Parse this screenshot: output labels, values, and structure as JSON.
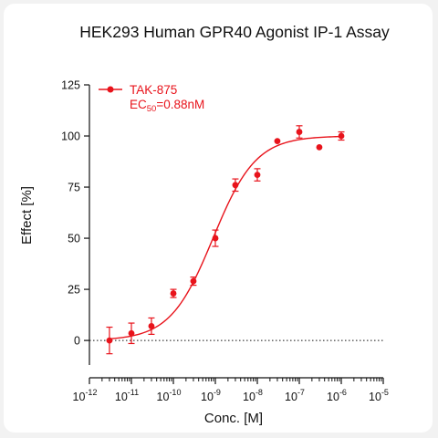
{
  "chart_data": {
    "type": "scatter",
    "title": "HEK293 Human GPR40 Agonist IP-1 Assay",
    "xlabel": "Conc. [M]",
    "ylabel": "Effect  [%]",
    "x_scale": "log",
    "xlim": [
      1e-12,
      1e-05
    ],
    "ylim": [
      -12,
      125
    ],
    "x_ticks": [
      {
        "base": "10",
        "exp": "-12"
      },
      {
        "base": "10",
        "exp": "-11"
      },
      {
        "base": "10",
        "exp": "-10"
      },
      {
        "base": "10",
        "exp": "-9"
      },
      {
        "base": "10",
        "exp": "-8"
      },
      {
        "base": "10",
        "exp": "-7"
      },
      {
        "base": "10",
        "exp": "-6"
      },
      {
        "base": "10",
        "exp": "-5"
      }
    ],
    "y_ticks": [
      "0",
      "25",
      "50",
      "75",
      "100",
      "125"
    ],
    "color": "#e8131b",
    "zero_line": true,
    "legend": {
      "position": "top-left",
      "name": "TAK-875",
      "ec_prefix": "EC",
      "ec_sub": "50",
      "ec_value": "=0.88nM"
    },
    "series": [
      {
        "name": "TAK-875",
        "points": [
          {
            "x": 3e-12,
            "y": 0,
            "err": 6.5
          },
          {
            "x": 1e-11,
            "y": 3.5,
            "err": 5
          },
          {
            "x": 3e-11,
            "y": 7,
            "err": 4
          },
          {
            "x": 1e-10,
            "y": 23,
            "err": 2
          },
          {
            "x": 3e-10,
            "y": 29,
            "err": 2
          },
          {
            "x": 1e-09,
            "y": 50,
            "err": 4
          },
          {
            "x": 3e-09,
            "y": 76,
            "err": 3
          },
          {
            "x": 1e-08,
            "y": 81,
            "err": 3
          },
          {
            "x": 3e-08,
            "y": 97.5,
            "err": 0
          },
          {
            "x": 1e-07,
            "y": 102,
            "err": 3
          },
          {
            "x": 3e-07,
            "y": 94.5,
            "err": 0
          },
          {
            "x": 1e-06,
            "y": 100,
            "err": 2
          }
        ],
        "fit": {
          "bottom": 0,
          "top": 100,
          "ec50": 8.8e-10,
          "hill": 0.85
        }
      }
    ]
  }
}
